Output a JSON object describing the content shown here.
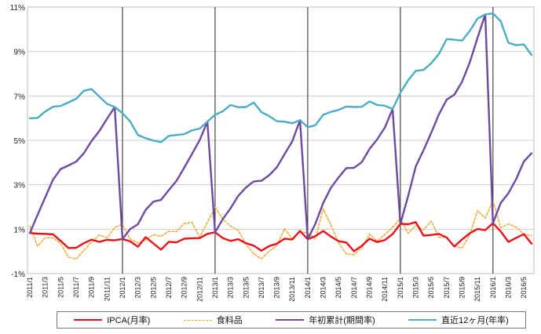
{
  "colors": {
    "ipca": "#e8101a",
    "food": "#f2a52b",
    "ytd": "#6e4a9e",
    "twelve": "#4bacc6",
    "year_divider": "#222222",
    "grid": "#cfcfcf"
  },
  "chart_data": {
    "type": "line",
    "title": "",
    "xlabel": "",
    "ylabel": "",
    "ylim": [
      -1,
      11
    ],
    "y_ticks": [
      "-1%",
      "1%",
      "3%",
      "5%",
      "7%",
      "9%",
      "11%"
    ],
    "x_tick_labels": [
      "2011/1",
      "2011/3",
      "2011/5",
      "2011/7",
      "2011/9",
      "2011/11",
      "2012/1",
      "2012/3",
      "2012/5",
      "2012/7",
      "2012/9",
      "2012/11",
      "2013/1",
      "2013/3",
      "2013/5",
      "2013/7",
      "2013/9",
      "2013/11",
      "2014/1",
      "2014/3",
      "2014/5",
      "2014/7",
      "2014/9",
      "2014/11",
      "2015/1",
      "2015/3",
      "2015/5",
      "2015/7",
      "2015/9",
      "2015/11",
      "2016/1",
      "2016/3",
      "2016/5"
    ],
    "x_start": "2011/1",
    "x_end": "2016/6",
    "grid": "horizontal",
    "legend_position": "bottom",
    "series": [
      {
        "name": "IPCA(月率)",
        "key": "ipca",
        "values": [
          0.83,
          0.8,
          0.79,
          0.77,
          0.47,
          0.15,
          0.16,
          0.37,
          0.53,
          0.43,
          0.52,
          0.5,
          0.56,
          0.45,
          0.21,
          0.64,
          0.36,
          0.08,
          0.43,
          0.41,
          0.57,
          0.59,
          0.6,
          0.79,
          0.86,
          0.6,
          0.47,
          0.55,
          0.37,
          0.26,
          0.03,
          0.24,
          0.35,
          0.57,
          0.54,
          0.92,
          0.55,
          0.69,
          0.92,
          0.67,
          0.46,
          0.4,
          0.01,
          0.25,
          0.57,
          0.42,
          0.51,
          0.78,
          1.24,
          1.22,
          1.32,
          0.71,
          0.74,
          0.79,
          0.62,
          0.22,
          0.54,
          0.82,
          1.01,
          0.96,
          1.27,
          0.9,
          0.43,
          0.61,
          0.78,
          0.35
        ]
      },
      {
        "name": "食料品",
        "key": "food",
        "values": [
          1.16,
          0.23,
          0.62,
          0.61,
          0.35,
          -0.26,
          -0.34,
          0.05,
          0.42,
          0.74,
          0.61,
          1.08,
          1.21,
          0.55,
          0.38,
          0.51,
          0.75,
          0.68,
          0.91,
          0.88,
          1.26,
          1.31,
          0.64,
          1.31,
          1.99,
          1.45,
          1.14,
          0.96,
          0.31,
          -0.11,
          -0.33,
          0.01,
          0.26,
          1.03,
          0.56,
          0.89,
          0.84,
          0.56,
          1.92,
          1.19,
          0.39,
          -0.11,
          -0.15,
          0.15,
          0.78,
          0.46,
          0.77,
          1.08,
          1.48,
          0.81,
          1.17,
          0.97,
          1.37,
          0.63,
          0.65,
          0.24,
          0.15,
          0.77,
          1.83,
          1.5,
          2.28,
          1.06,
          1.24,
          1.09,
          0.78,
          0.71
        ]
      },
      {
        "name": "年初累計(期間率)",
        "key": "ytd",
        "values": [
          0.83,
          1.64,
          2.44,
          3.23,
          3.71,
          3.87,
          4.04,
          4.42,
          4.97,
          5.42,
          5.97,
          6.5,
          0.56,
          1.01,
          1.22,
          1.87,
          2.24,
          2.32,
          2.76,
          3.18,
          3.77,
          4.38,
          5.01,
          5.84,
          0.86,
          1.46,
          1.94,
          2.5,
          2.88,
          3.15,
          3.18,
          3.43,
          3.79,
          4.38,
          4.95,
          5.91,
          0.55,
          1.25,
          2.18,
          2.86,
          3.33,
          3.75,
          3.76,
          4.02,
          4.61,
          5.05,
          5.58,
          6.41,
          1.24,
          2.48,
          3.83,
          4.56,
          5.34,
          6.17,
          6.83,
          7.06,
          7.64,
          8.52,
          9.62,
          10.67,
          1.27,
          2.18,
          2.62,
          3.25,
          4.05,
          4.42
        ]
      },
      {
        "name": "直近12ヶ月(年率)",
        "key": "twelve",
        "values": [
          5.99,
          6.01,
          6.3,
          6.51,
          6.55,
          6.71,
          6.87,
          7.23,
          7.31,
          6.97,
          6.64,
          6.5,
          6.22,
          5.85,
          5.24,
          5.1,
          4.99,
          4.92,
          5.2,
          5.24,
          5.28,
          5.45,
          5.53,
          5.84,
          6.15,
          6.31,
          6.59,
          6.49,
          6.5,
          6.7,
          6.27,
          6.09,
          5.86,
          5.84,
          5.77,
          5.91,
          5.59,
          5.68,
          6.15,
          6.28,
          6.37,
          6.52,
          6.5,
          6.51,
          6.75,
          6.59,
          6.56,
          6.41,
          7.14,
          7.7,
          8.13,
          8.17,
          8.47,
          8.89,
          9.56,
          9.53,
          9.49,
          9.93,
          10.48,
          10.67,
          10.71,
          10.36,
          9.39,
          9.28,
          9.32,
          8.84
        ]
      }
    ]
  }
}
